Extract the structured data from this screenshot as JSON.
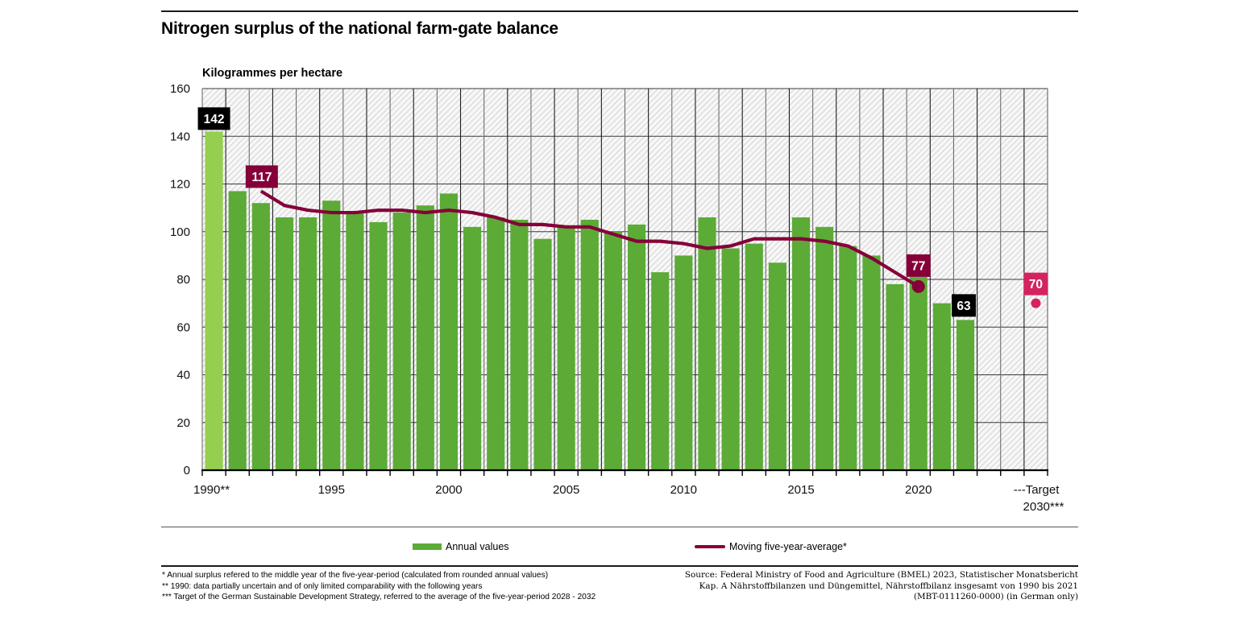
{
  "header": {
    "title": "Nitrogen surplus of the national farm-gate balance"
  },
  "chart_data": {
    "type": "bar",
    "title": "Nitrogen surplus of the national farm-gate balance",
    "ylabel": "Kilogrammes per hectare",
    "xlabel": "",
    "ylim": [
      0,
      160
    ],
    "yticks": [
      0,
      20,
      40,
      60,
      80,
      100,
      120,
      140,
      160
    ],
    "grid": true,
    "x_slots": [
      1990,
      1991,
      1992,
      1993,
      1994,
      1995,
      1996,
      1997,
      1998,
      1999,
      2000,
      2001,
      2002,
      2003,
      2004,
      2005,
      2006,
      2007,
      2008,
      2009,
      2010,
      2011,
      2012,
      2013,
      2014,
      2015,
      2016,
      2017,
      2018,
      2019,
      2020,
      2021,
      2022,
      2023,
      2024,
      "2030"
    ],
    "xtick_labels": [
      {
        "slot": 0,
        "text": "1990**"
      },
      {
        "slot": 5,
        "text": "1995"
      },
      {
        "slot": 10,
        "text": "2000"
      },
      {
        "slot": 15,
        "text": "2005"
      },
      {
        "slot": 20,
        "text": "2010"
      },
      {
        "slot": 25,
        "text": "2015"
      },
      {
        "slot": 30,
        "text": "2020"
      },
      {
        "slot": 35,
        "text": "---Target",
        "text2": "2030***"
      }
    ],
    "series": [
      {
        "name": "Annual values",
        "type": "bar",
        "color": "#5bab36",
        "highlight_color": "#95cf4f",
        "highlight_years": [
          1990
        ],
        "years": [
          1990,
          1991,
          1992,
          1993,
          1994,
          1995,
          1996,
          1997,
          1998,
          1999,
          2000,
          2001,
          2002,
          2003,
          2004,
          2005,
          2006,
          2007,
          2008,
          2009,
          2010,
          2011,
          2012,
          2013,
          2014,
          2015,
          2016,
          2017,
          2018,
          2019,
          2020,
          2021,
          2022
        ],
        "values": [
          142,
          117,
          112,
          106,
          106,
          113,
          108,
          104,
          108,
          111,
          116,
          102,
          106,
          105,
          97,
          102,
          105,
          100,
          103,
          83,
          90,
          106,
          93,
          95,
          87,
          106,
          102,
          94,
          90,
          78,
          81,
          70,
          63
        ]
      },
      {
        "name": "Moving five-year-average*",
        "type": "line",
        "color": "#850039",
        "years": [
          1992,
          1993,
          1994,
          1995,
          1996,
          1997,
          1998,
          1999,
          2000,
          2001,
          2002,
          2003,
          2004,
          2005,
          2006,
          2007,
          2008,
          2009,
          2010,
          2011,
          2012,
          2013,
          2014,
          2015,
          2016,
          2017,
          2018,
          2019,
          2020
        ],
        "values": [
          117,
          111,
          109,
          108,
          108,
          109,
          109,
          108,
          109,
          108,
          106,
          103,
          103,
          102,
          102,
          99,
          96,
          96,
          95,
          93,
          94,
          97,
          97,
          97,
          96,
          94,
          89,
          83,
          77
        ]
      },
      {
        "name": "Target 2030",
        "type": "point",
        "color": "#d4245f",
        "slot": 35,
        "value": 70
      }
    ],
    "annotations": [
      {
        "text": "142",
        "target": "bar-1990",
        "bg": "#000000"
      },
      {
        "text": "117",
        "target": "line-1992",
        "bg": "#850039"
      },
      {
        "text": "77",
        "target": "line-2020",
        "bg": "#850039"
      },
      {
        "text": "63",
        "target": "bar-2022",
        "bg": "#000000"
      },
      {
        "text": "70",
        "target": "target-2030",
        "bg": "#d4245f"
      }
    ],
    "legend": {
      "placement": "bottom",
      "items": [
        "Annual values",
        "Moving five-year-average*"
      ]
    }
  },
  "legend": {
    "annual": "Annual values",
    "moving": "Moving five-year-average*"
  },
  "footnotes": {
    "left": [
      "* Annual surplus refered to the middle year of the five-year-period (calculated from rounded annual values)",
      "** 1990: data partially uncertain and of only limited comparability with the following years",
      "*** Target of the German Sustainable Development Strategy, referred to the average of the five-year-period 2028 - 2032"
    ],
    "right": [
      "Source: Federal Ministry of Food and Agriculture (BMEL) 2023, Statistischer Monatsbericht",
      "Kap. A Nährstoffbilanzen und Düngemittel, Nährstoffbilanz insgesamt von 1990 bis 2021",
      "(MBT-0111260-0000) (in German only)"
    ]
  },
  "colors": {
    "bar": "#5bab36",
    "bar_highlight": "#95cf4f",
    "line": "#850039",
    "target": "#d4245f",
    "label_dark": "#000000"
  }
}
